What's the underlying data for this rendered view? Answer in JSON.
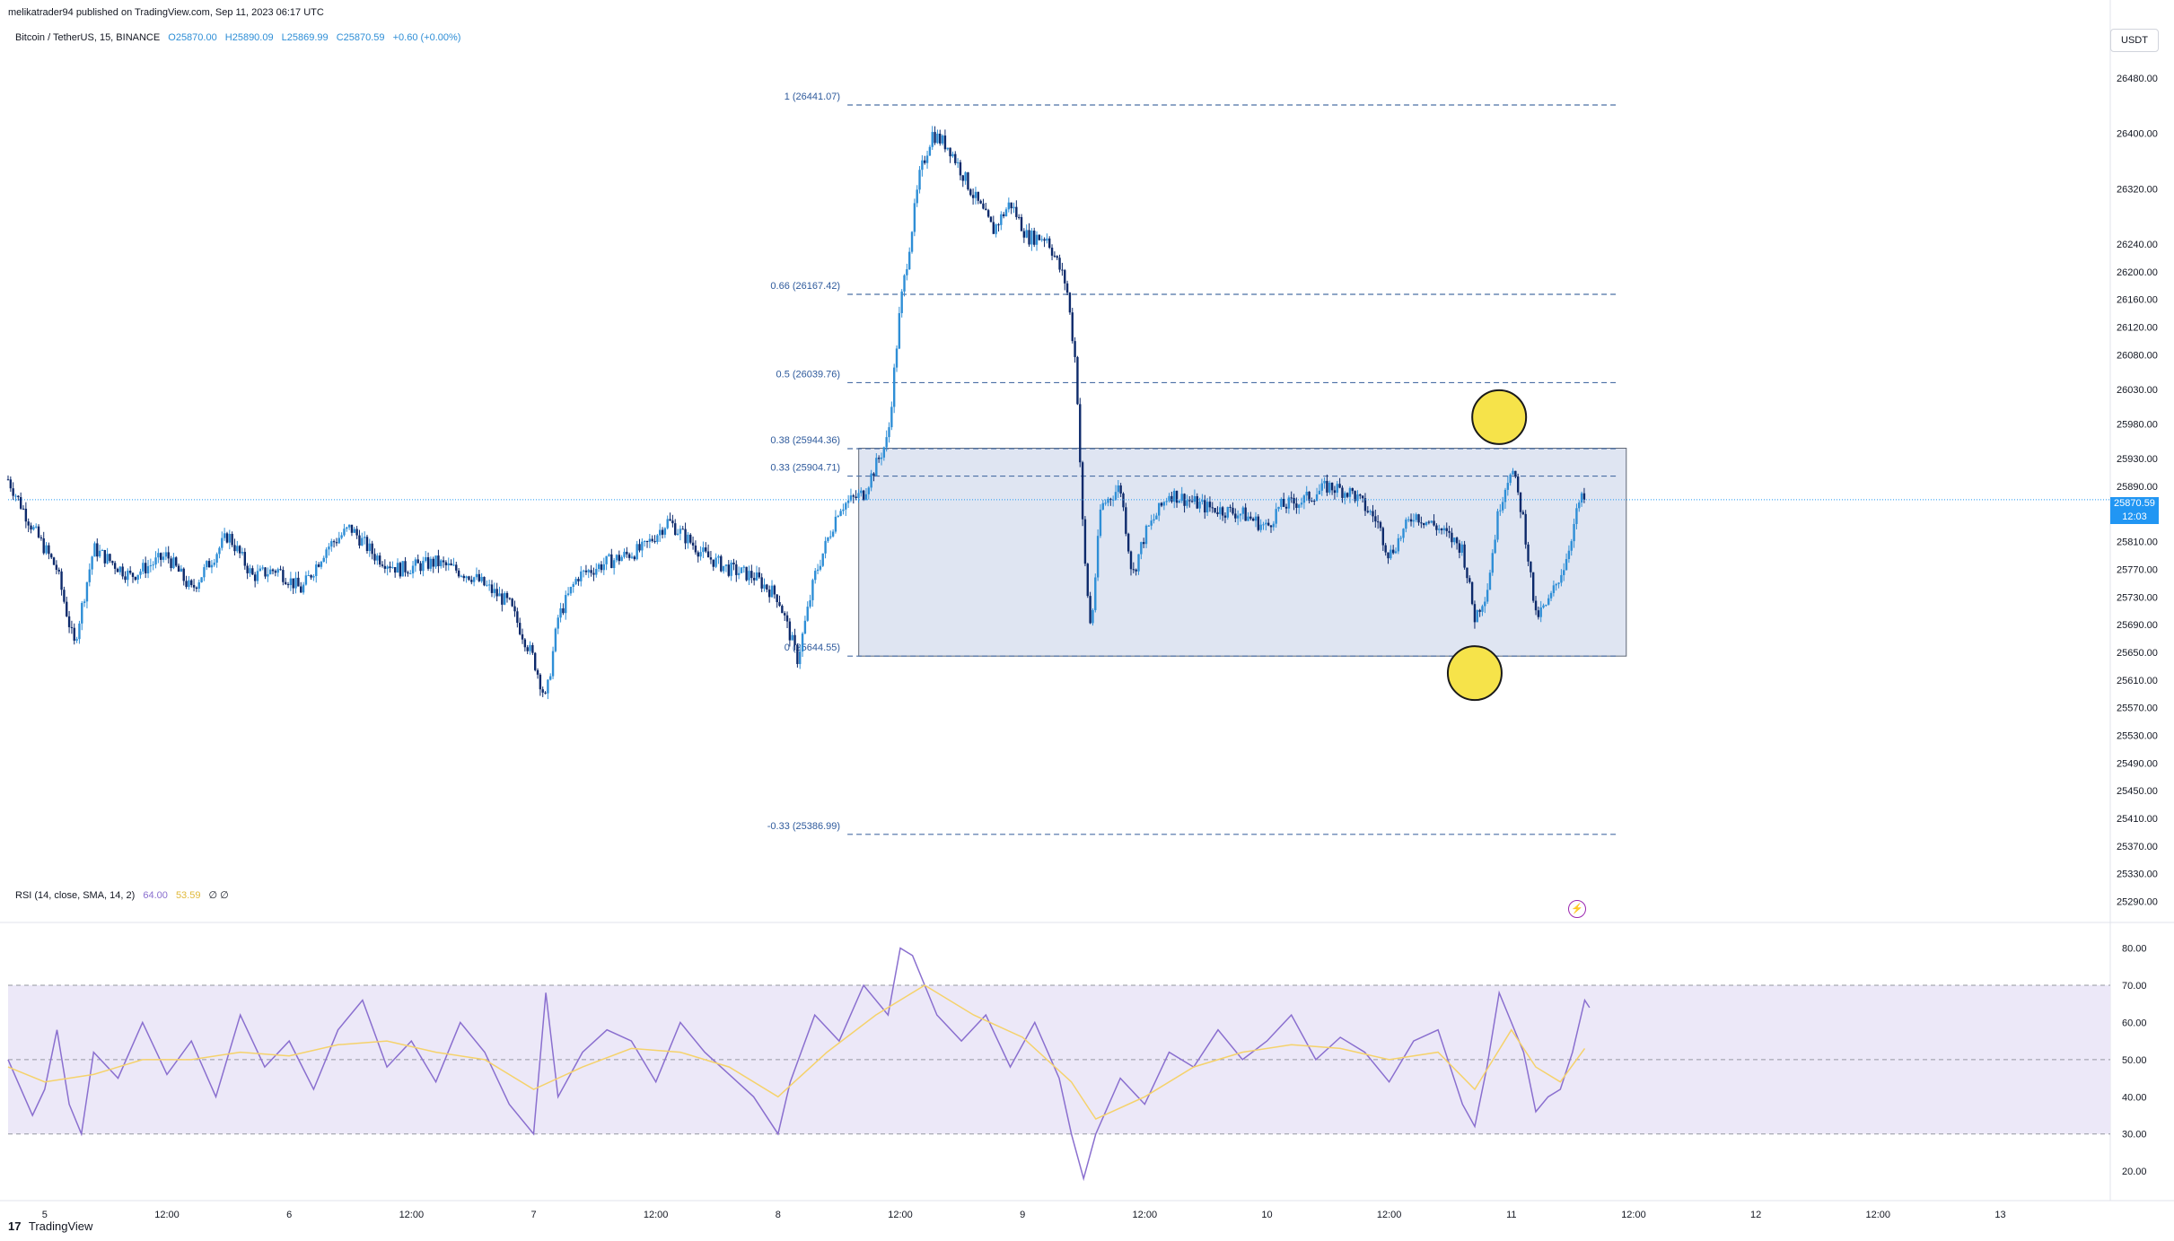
{
  "header": {
    "published_by": "melikatrader94 published on TradingView.com, Sep 11, 2023 06:17 UTC",
    "symbol": "Bitcoin / TetherUS, 15, BINANCE",
    "open": "O25870.00",
    "high": "H25890.09",
    "low": "L25869.99",
    "close": "C25870.59",
    "change": "+0.60 (+0.00%)",
    "currency": "USDT"
  },
  "price_tag": {
    "price": "25870.59",
    "countdown": "12:03"
  },
  "rsi_header": {
    "label": "RSI (14, close, SMA, 14, 2)",
    "rsi_value": "64.00",
    "ma_value": "53.59",
    "extra": "∅ ∅"
  },
  "footer": {
    "logo_mark": "17",
    "logo_text": "TradingView"
  },
  "colors": {
    "candle_up": "#2e8ed6",
    "candle_down": "#0d2a6b",
    "fib_line": "#4a6fa5",
    "box_fill": "#d9e1f0",
    "rsi_line": "#8a6fcf",
    "rsi_ma": "#f5d26b",
    "rsi_band": "#ece8f8",
    "marker": "#f6e34a",
    "price_tag": "#2196f3"
  },
  "icons": {
    "alert": "lightning-bolt-icon"
  },
  "chart_data": [
    {
      "type": "candlestick",
      "title": "Bitcoin / TetherUS, 15, BINANCE",
      "xlabel": "",
      "ylabel": "",
      "x_ticks": [
        "5",
        "12:00",
        "6",
        "12:00",
        "7",
        "12:00",
        "8",
        "12:00",
        "9",
        "12:00",
        "10",
        "12:00",
        "11",
        "12:00",
        "12",
        "12:00",
        "13"
      ],
      "y_ticks": [
        "26480.00",
        "26400.00",
        "26320.00",
        "26240.00",
        "26200.00",
        "26160.00",
        "26120.00",
        "26080.00",
        "26030.00",
        "25980.00",
        "25930.00",
        "25890.00",
        "25810.00",
        "25770.00",
        "25730.00",
        "25690.00",
        "25650.00",
        "25610.00",
        "25570.00",
        "25530.00",
        "25490.00",
        "25450.00",
        "25410.00",
        "25370.00",
        "25330.00",
        "25290.00"
      ],
      "ylim": [
        25270,
        26515
      ],
      "x_range_days": [
        4.85,
        13.45
      ],
      "last_price": 25870.59,
      "fib_levels": [
        {
          "label": "1 (26441.07)",
          "value": 26441.07
        },
        {
          "label": "0.66 (26167.42)",
          "value": 26167.42
        },
        {
          "label": "0.5 (26039.76)",
          "value": 26039.76
        },
        {
          "label": "0.38 (25944.36)",
          "value": 25944.36
        },
        {
          "label": "0.33 (25904.71)",
          "value": 25904.71
        },
        {
          "label": "0 (25644.55)",
          "value": 25644.55
        },
        {
          "label": "-0.33 (25386.99)",
          "value": 25386.99
        }
      ],
      "fib_x_range_days": [
        7.99,
        11.43
      ],
      "range_box": {
        "x_start_day": 8.33,
        "x_end_day": 11.47,
        "top": 25945,
        "bottom": 25644.55
      },
      "markers": [
        {
          "x_day": 10.95,
          "y": 25990
        },
        {
          "x_day": 10.85,
          "y": 25620
        }
      ],
      "price_path": [
        [
          4.85,
          25900
        ],
        [
          4.95,
          25830
        ],
        [
          5.05,
          25770
        ],
        [
          5.12,
          25660
        ],
        [
          5.2,
          25800
        ],
        [
          5.35,
          25760
        ],
        [
          5.5,
          25790
        ],
        [
          5.6,
          25740
        ],
        [
          5.75,
          25820
        ],
        [
          5.85,
          25760
        ],
        [
          5.95,
          25770
        ],
        [
          6.05,
          25740
        ],
        [
          6.15,
          25800
        ],
        [
          6.25,
          25830
        ],
        [
          6.35,
          25790
        ],
        [
          6.45,
          25770
        ],
        [
          6.6,
          25780
        ],
        [
          6.75,
          25760
        ],
        [
          6.9,
          25720
        ],
        [
          7.0,
          25640
        ],
        [
          7.05,
          25580
        ],
        [
          7.1,
          25700
        ],
        [
          7.18,
          25760
        ],
        [
          7.3,
          25780
        ],
        [
          7.45,
          25800
        ],
        [
          7.55,
          25840
        ],
        [
          7.7,
          25790
        ],
        [
          7.8,
          25770
        ],
        [
          7.9,
          25760
        ],
        [
          8.0,
          25730
        ],
        [
          8.08,
          25640
        ],
        [
          8.15,
          25760
        ],
        [
          8.25,
          25860
        ],
        [
          8.35,
          25880
        ],
        [
          8.45,
          25960
        ],
        [
          8.5,
          26150
        ],
        [
          8.58,
          26340
        ],
        [
          8.63,
          26400
        ],
        [
          8.7,
          26380
        ],
        [
          8.8,
          26310
        ],
        [
          8.88,
          26260
        ],
        [
          8.95,
          26300
        ],
        [
          9.02,
          26250
        ],
        [
          9.1,
          26250
        ],
        [
          9.18,
          26180
        ],
        [
          9.22,
          26060
        ],
        [
          9.25,
          25800
        ],
        [
          9.28,
          25680
        ],
        [
          9.32,
          25860
        ],
        [
          9.4,
          25890
        ],
        [
          9.45,
          25760
        ],
        [
          9.5,
          25820
        ],
        [
          9.6,
          25880
        ],
        [
          9.75,
          25860
        ],
        [
          9.9,
          25850
        ],
        [
          10.0,
          25830
        ],
        [
          10.05,
          25860
        ],
        [
          10.15,
          25870
        ],
        [
          10.25,
          25890
        ],
        [
          10.35,
          25880
        ],
        [
          10.45,
          25840
        ],
        [
          10.5,
          25790
        ],
        [
          10.6,
          25850
        ],
        [
          10.7,
          25830
        ],
        [
          10.8,
          25800
        ],
        [
          10.85,
          25700
        ],
        [
          10.9,
          25740
        ],
        [
          10.95,
          25860
        ],
        [
          11.0,
          25920
        ],
        [
          11.05,
          25840
        ],
        [
          11.1,
          25700
        ],
        [
          11.15,
          25720
        ],
        [
          11.22,
          25780
        ],
        [
          11.28,
          25870
        ],
        [
          11.3,
          25870
        ]
      ]
    },
    {
      "type": "line",
      "title": "RSI (14, close, SMA, 14, 2)",
      "y_ticks": [
        "80.00",
        "70.00",
        "60.00",
        "50.00",
        "40.00",
        "30.00",
        "20.00"
      ],
      "ylim": [
        14,
        84
      ],
      "band": [
        30,
        70
      ],
      "midline": 50,
      "series": [
        {
          "role": "rsi",
          "values": [
            [
              4.85,
              50
            ],
            [
              4.95,
              35
            ],
            [
              5.0,
              42
            ],
            [
              5.05,
              58
            ],
            [
              5.1,
              38
            ],
            [
              5.15,
              30
            ],
            [
              5.2,
              52
            ],
            [
              5.3,
              45
            ],
            [
              5.4,
              60
            ],
            [
              5.5,
              46
            ],
            [
              5.6,
              55
            ],
            [
              5.7,
              40
            ],
            [
              5.8,
              62
            ],
            [
              5.9,
              48
            ],
            [
              6.0,
              55
            ],
            [
              6.1,
              42
            ],
            [
              6.2,
              58
            ],
            [
              6.3,
              66
            ],
            [
              6.4,
              48
            ],
            [
              6.5,
              55
            ],
            [
              6.6,
              44
            ],
            [
              6.7,
              60
            ],
            [
              6.8,
              52
            ],
            [
              6.9,
              38
            ],
            [
              7.0,
              30
            ],
            [
              7.05,
              68
            ],
            [
              7.1,
              40
            ],
            [
              7.2,
              52
            ],
            [
              7.3,
              58
            ],
            [
              7.4,
              55
            ],
            [
              7.5,
              44
            ],
            [
              7.6,
              60
            ],
            [
              7.7,
              52
            ],
            [
              7.8,
              46
            ],
            [
              7.9,
              40
            ],
            [
              8.0,
              30
            ],
            [
              8.05,
              44
            ],
            [
              8.15,
              62
            ],
            [
              8.25,
              55
            ],
            [
              8.35,
              70
            ],
            [
              8.45,
              62
            ],
            [
              8.5,
              80
            ],
            [
              8.55,
              78
            ],
            [
              8.65,
              62
            ],
            [
              8.75,
              55
            ],
            [
              8.85,
              62
            ],
            [
              8.95,
              48
            ],
            [
              9.05,
              60
            ],
            [
              9.15,
              45
            ],
            [
              9.2,
              30
            ],
            [
              9.25,
              18
            ],
            [
              9.3,
              30
            ],
            [
              9.4,
              45
            ],
            [
              9.5,
              38
            ],
            [
              9.6,
              52
            ],
            [
              9.7,
              48
            ],
            [
              9.8,
              58
            ],
            [
              9.9,
              50
            ],
            [
              10.0,
              55
            ],
            [
              10.1,
              62
            ],
            [
              10.2,
              50
            ],
            [
              10.3,
              56
            ],
            [
              10.4,
              52
            ],
            [
              10.5,
              44
            ],
            [
              10.6,
              55
            ],
            [
              10.7,
              58
            ],
            [
              10.8,
              38
            ],
            [
              10.85,
              32
            ],
            [
              10.9,
              48
            ],
            [
              10.95,
              68
            ],
            [
              11.0,
              60
            ],
            [
              11.05,
              52
            ],
            [
              11.1,
              36
            ],
            [
              11.15,
              40
            ],
            [
              11.2,
              42
            ],
            [
              11.25,
              52
            ],
            [
              11.3,
              66
            ],
            [
              11.32,
              64
            ]
          ]
        },
        {
          "role": "rsi_ma",
          "values": [
            [
              4.85,
              48
            ],
            [
              5.0,
              44
            ],
            [
              5.2,
              46
            ],
            [
              5.4,
              50
            ],
            [
              5.6,
              50
            ],
            [
              5.8,
              52
            ],
            [
              6.0,
              51
            ],
            [
              6.2,
              54
            ],
            [
              6.4,
              55
            ],
            [
              6.6,
              52
            ],
            [
              6.8,
              50
            ],
            [
              7.0,
              42
            ],
            [
              7.2,
              48
            ],
            [
              7.4,
              53
            ],
            [
              7.6,
              52
            ],
            [
              7.8,
              48
            ],
            [
              8.0,
              40
            ],
            [
              8.2,
              52
            ],
            [
              8.4,
              62
            ],
            [
              8.6,
              70
            ],
            [
              8.8,
              62
            ],
            [
              9.0,
              56
            ],
            [
              9.2,
              44
            ],
            [
              9.3,
              34
            ],
            [
              9.5,
              40
            ],
            [
              9.7,
              48
            ],
            [
              9.9,
              52
            ],
            [
              10.1,
              54
            ],
            [
              10.3,
              53
            ],
            [
              10.5,
              50
            ],
            [
              10.7,
              52
            ],
            [
              10.85,
              42
            ],
            [
              11.0,
              58
            ],
            [
              11.1,
              48
            ],
            [
              11.2,
              44
            ],
            [
              11.3,
              53
            ]
          ]
        }
      ]
    }
  ]
}
